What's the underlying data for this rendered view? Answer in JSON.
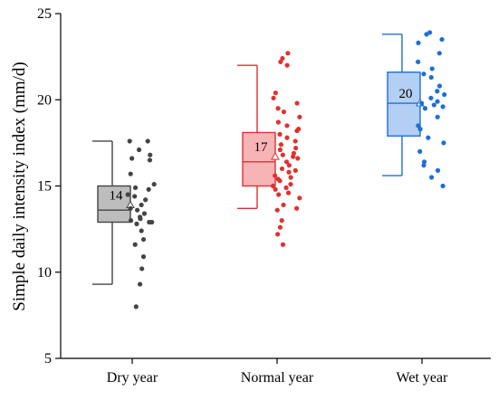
{
  "chart_data": {
    "type": "box",
    "ylabel": "Simple daily intensity index (mm/d)",
    "xlabel": "",
    "ylim": [
      5,
      25
    ],
    "yticks": [
      5,
      10,
      15,
      20,
      25
    ],
    "grid": false,
    "categories": [
      "Dry year",
      "Normal year",
      "Wet year"
    ],
    "series": [
      {
        "category": "Dry year",
        "color": "#444444",
        "fill": "#bdbdbd",
        "whisker_low": 9.3,
        "q1": 12.9,
        "median": 13.6,
        "q3": 15.0,
        "whisker_high": 17.6,
        "mean": 13.9,
        "mean_label": "14",
        "points": [
          17.6,
          17.6,
          17.1,
          16.8,
          16.6,
          16.5,
          15.7,
          15.1,
          14.9,
          14.8,
          14.5,
          14.4,
          14.2,
          13.9,
          13.7,
          13.6,
          13.4,
          13.2,
          13.1,
          13.0,
          12.9,
          12.9,
          12.8,
          12.4,
          11.9,
          11.6,
          10.9,
          10.2,
          9.3,
          8.0
        ]
      },
      {
        "category": "Normal year",
        "color": "#e03131",
        "fill": "#f7b4b7",
        "whisker_low": 13.7,
        "q1": 15.0,
        "median": 16.4,
        "q3": 18.1,
        "whisker_high": 22.0,
        "mean": 16.7,
        "mean_label": "17",
        "points": [
          22.7,
          22.4,
          22.2,
          22.0,
          20.4,
          20.1,
          19.8,
          19.5,
          19.3,
          19.0,
          18.7,
          18.5,
          18.3,
          18.2,
          18.0,
          17.8,
          17.6,
          17.4,
          17.2,
          17.1,
          16.9,
          16.8,
          16.7,
          16.6,
          16.4,
          16.2,
          16.0,
          15.9,
          15.8,
          15.6,
          15.5,
          15.4,
          15.3,
          15.1,
          15.0,
          14.9,
          14.8,
          14.6,
          14.5,
          14.3,
          13.9,
          13.7,
          13.6,
          13.0,
          12.6,
          12.2,
          11.6
        ]
      },
      {
        "category": "Wet year",
        "color": "#1f6fd6",
        "fill": "#b3cff3",
        "whisker_low": 15.6,
        "q1": 17.9,
        "median": 19.8,
        "q3": 21.6,
        "whisker_high": 23.8,
        "mean": 19.8,
        "mean_label": "20",
        "points": [
          23.9,
          23.8,
          23.5,
          23.3,
          22.7,
          22.2,
          21.8,
          21.5,
          21.3,
          20.8,
          20.5,
          20.3,
          20.1,
          19.9,
          19.8,
          19.7,
          19.6,
          19.5,
          19.0,
          18.5,
          18.3,
          17.8,
          17.5,
          17.0,
          16.4,
          16.2,
          15.9,
          15.5,
          15.0
        ]
      }
    ]
  }
}
